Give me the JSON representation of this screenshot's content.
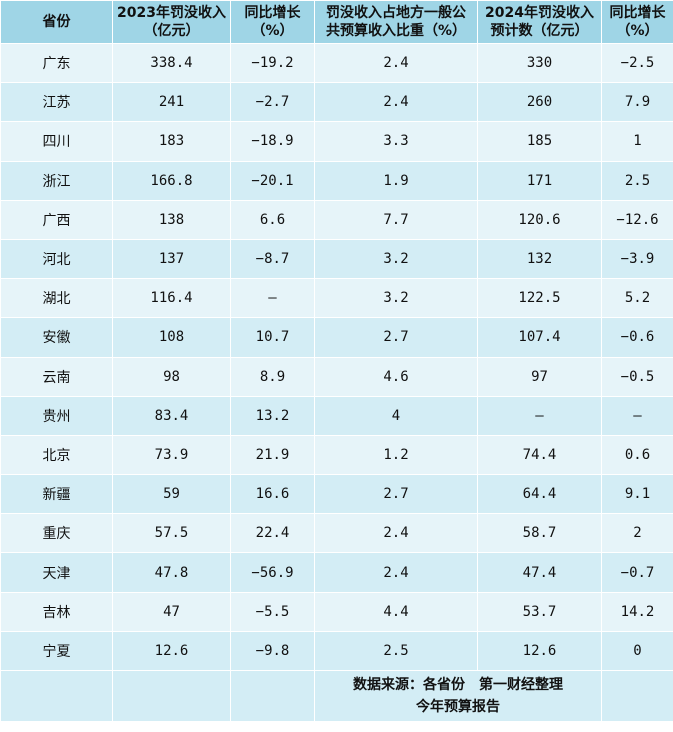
{
  "table": {
    "headers": [
      "省份",
      "2023年罚没收入\n（亿元）",
      "同比增长\n（%）",
      "罚没收入占地方一般公\n共预算收入比重（%）",
      "2024年罚没收入\n预计数（亿元）",
      "同比增长\n（%）"
    ],
    "rows": [
      [
        "广东",
        "338.4",
        "−19.2",
        "2.4",
        "330",
        "−2.5"
      ],
      [
        "江苏",
        "241",
        "−2.7",
        "2.4",
        "260",
        "7.9"
      ],
      [
        "四川",
        "183",
        "−18.9",
        "3.3",
        "185",
        "1"
      ],
      [
        "浙江",
        "166.8",
        "−20.1",
        "1.9",
        "171",
        "2.5"
      ],
      [
        "广西",
        "138",
        "6.6",
        "7.7",
        "120.6",
        "−12.6"
      ],
      [
        "河北",
        "137",
        "−8.7",
        "3.2",
        "132",
        "−3.9"
      ],
      [
        "湖北",
        "116.4",
        "—",
        "3.2",
        "122.5",
        "5.2"
      ],
      [
        "安徽",
        "108",
        "10.7",
        "2.7",
        "107.4",
        "−0.6"
      ],
      [
        "云南",
        "98",
        "8.9",
        "4.6",
        "97",
        "−0.5"
      ],
      [
        "贵州",
        "83.4",
        "13.2",
        "4",
        "—",
        "—"
      ],
      [
        "北京",
        "73.9",
        "21.9",
        "1.2",
        "74.4",
        "0.6"
      ],
      [
        "新疆",
        "59",
        "16.6",
        "2.7",
        "64.4",
        "9.1"
      ],
      [
        "重庆",
        "57.5",
        "22.4",
        "2.4",
        "58.7",
        "2"
      ],
      [
        "天津",
        "47.8",
        "−56.9",
        "2.4",
        "47.4",
        "−0.7"
      ],
      [
        "吉林",
        "47",
        "−5.5",
        "4.4",
        "53.7",
        "14.2"
      ],
      [
        "宁夏",
        "12.6",
        "−9.8",
        "2.5",
        "12.6",
        "0"
      ]
    ],
    "source_note": "数据来源：各省份　第一财经整理\n今年预算报告"
  },
  "colors": {
    "header_bg": "#9fd5e6",
    "row_light": "#e6f4f9",
    "row_dark": "#d3edf5"
  }
}
